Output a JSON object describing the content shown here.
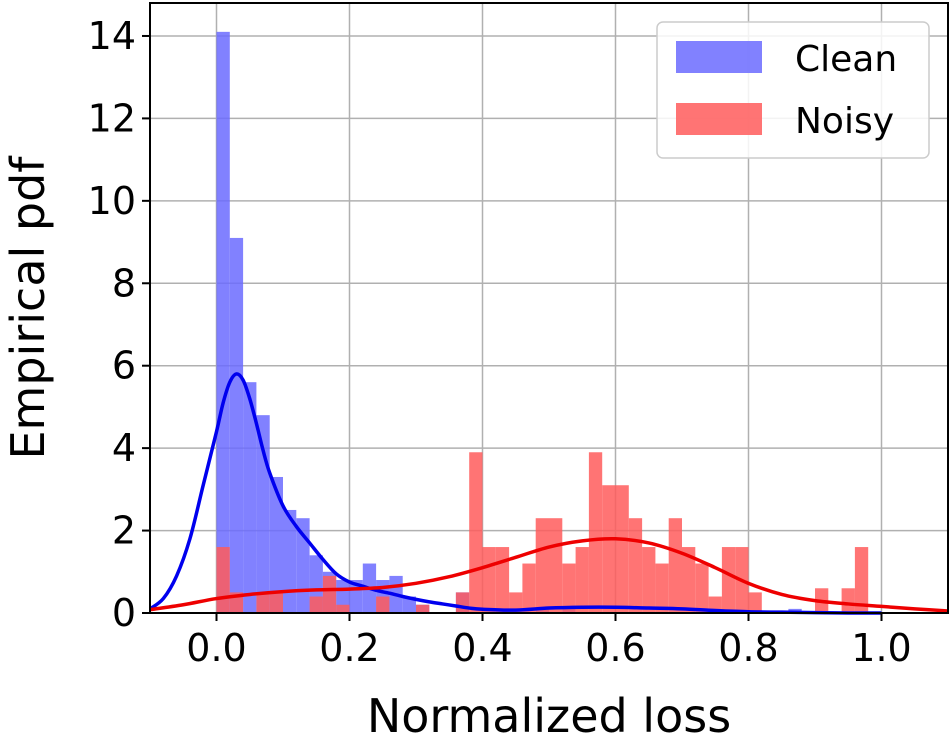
{
  "chart_data": {
    "type": "bar",
    "subtype": "histogram-with-kde",
    "title": "",
    "xlabel": "Normalized loss",
    "ylabel": "Empirical pdf",
    "xlim": [
      -0.1,
      1.1
    ],
    "ylim": [
      0,
      14.8
    ],
    "xticks": [
      "0.0",
      "0.2",
      "0.4",
      "0.6",
      "0.8",
      "1.0"
    ],
    "xtick_values": [
      0.0,
      0.2,
      0.4,
      0.6,
      0.8,
      1.0
    ],
    "yticks": [
      "0",
      "2",
      "4",
      "6",
      "8",
      "10",
      "12",
      "14"
    ],
    "ytick_values": [
      0,
      2,
      4,
      6,
      8,
      10,
      12,
      14
    ],
    "grid": true,
    "legend_position": "top-right",
    "bin_width": 0.02,
    "series": [
      {
        "name": "Clean",
        "color": "#6b6bff",
        "kde_color": "#0000ee",
        "bars": [
          {
            "x": 0.0,
            "h": 14.1
          },
          {
            "x": 0.02,
            "h": 9.1
          },
          {
            "x": 0.04,
            "h": 5.6
          },
          {
            "x": 0.06,
            "h": 4.8
          },
          {
            "x": 0.08,
            "h": 3.3
          },
          {
            "x": 0.1,
            "h": 2.5
          },
          {
            "x": 0.12,
            "h": 2.3
          },
          {
            "x": 0.14,
            "h": 1.4
          },
          {
            "x": 0.16,
            "h": 1.0
          },
          {
            "x": 0.18,
            "h": 0.8
          },
          {
            "x": 0.2,
            "h": 0.8
          },
          {
            "x": 0.22,
            "h": 1.2
          },
          {
            "x": 0.24,
            "h": 0.8
          },
          {
            "x": 0.26,
            "h": 0.9
          },
          {
            "x": 0.28,
            "h": 0.4
          },
          {
            "x": 0.3,
            "h": 0.2
          },
          {
            "x": 0.36,
            "h": 0.5
          },
          {
            "x": 0.48,
            "h": 0.1
          },
          {
            "x": 0.52,
            "h": 0.1
          },
          {
            "x": 0.86,
            "h": 0.1
          }
        ],
        "kde": {
          "x": [
            -0.1,
            -0.08,
            -0.06,
            -0.04,
            -0.02,
            0.0,
            0.01,
            0.02,
            0.03,
            0.04,
            0.05,
            0.06,
            0.07,
            0.08,
            0.1,
            0.12,
            0.14,
            0.16,
            0.18,
            0.2,
            0.22,
            0.24,
            0.26,
            0.28,
            0.3,
            0.32,
            0.34,
            0.36,
            0.38,
            0.4,
            0.45,
            0.5,
            0.55,
            0.6,
            0.65,
            0.7,
            0.75,
            0.8,
            0.85,
            0.9,
            0.95,
            1.0
          ],
          "y": [
            0.1,
            0.35,
            0.9,
            1.8,
            3.1,
            4.4,
            5.1,
            5.6,
            5.8,
            5.65,
            5.2,
            4.6,
            3.95,
            3.4,
            2.6,
            2.1,
            1.7,
            1.3,
            0.95,
            0.75,
            0.65,
            0.55,
            0.48,
            0.4,
            0.33,
            0.27,
            0.22,
            0.17,
            0.12,
            0.09,
            0.07,
            0.12,
            0.14,
            0.14,
            0.12,
            0.1,
            0.06,
            0.03,
            0.02,
            0.01,
            0.0,
            0.0
          ]
        }
      },
      {
        "name": "Noisy",
        "color": "#ff5c5c",
        "kde_color": "#ee0000",
        "bars": [
          {
            "x": 0.0,
            "h": 1.6
          },
          {
            "x": 0.02,
            "h": 0.5
          },
          {
            "x": 0.06,
            "h": 0.5
          },
          {
            "x": 0.08,
            "h": 0.5
          },
          {
            "x": 0.14,
            "h": 0.4
          },
          {
            "x": 0.16,
            "h": 0.9
          },
          {
            "x": 0.18,
            "h": 0.2
          },
          {
            "x": 0.24,
            "h": 0.4
          },
          {
            "x": 0.3,
            "h": 0.2
          },
          {
            "x": 0.36,
            "h": 0.5
          },
          {
            "x": 0.38,
            "h": 3.9
          },
          {
            "x": 0.4,
            "h": 1.6
          },
          {
            "x": 0.42,
            "h": 1.6
          },
          {
            "x": 0.44,
            "h": 0.5
          },
          {
            "x": 0.46,
            "h": 1.2
          },
          {
            "x": 0.48,
            "h": 2.3
          },
          {
            "x": 0.5,
            "h": 2.3
          },
          {
            "x": 0.52,
            "h": 1.2
          },
          {
            "x": 0.54,
            "h": 1.6
          },
          {
            "x": 0.56,
            "h": 3.9
          },
          {
            "x": 0.58,
            "h": 3.1
          },
          {
            "x": 0.6,
            "h": 3.1
          },
          {
            "x": 0.62,
            "h": 2.3
          },
          {
            "x": 0.64,
            "h": 1.6
          },
          {
            "x": 0.66,
            "h": 1.2
          },
          {
            "x": 0.68,
            "h": 2.3
          },
          {
            "x": 0.7,
            "h": 1.6
          },
          {
            "x": 0.72,
            "h": 1.2
          },
          {
            "x": 0.74,
            "h": 0.4
          },
          {
            "x": 0.76,
            "h": 1.6
          },
          {
            "x": 0.78,
            "h": 1.6
          },
          {
            "x": 0.8,
            "h": 0.5
          },
          {
            "x": 0.9,
            "h": 0.6
          },
          {
            "x": 0.94,
            "h": 0.6
          },
          {
            "x": 0.96,
            "h": 1.6
          }
        ],
        "kde": {
          "x": [
            -0.1,
            -0.05,
            0.0,
            0.05,
            0.1,
            0.15,
            0.2,
            0.25,
            0.3,
            0.35,
            0.4,
            0.45,
            0.5,
            0.55,
            0.6,
            0.65,
            0.7,
            0.75,
            0.8,
            0.85,
            0.9,
            0.95,
            1.0,
            1.05,
            1.1
          ],
          "y": [
            0.08,
            0.2,
            0.35,
            0.45,
            0.52,
            0.56,
            0.58,
            0.62,
            0.72,
            0.88,
            1.1,
            1.35,
            1.6,
            1.75,
            1.8,
            1.7,
            1.45,
            1.1,
            0.72,
            0.45,
            0.3,
            0.22,
            0.16,
            0.1,
            0.05
          ]
        }
      }
    ]
  }
}
